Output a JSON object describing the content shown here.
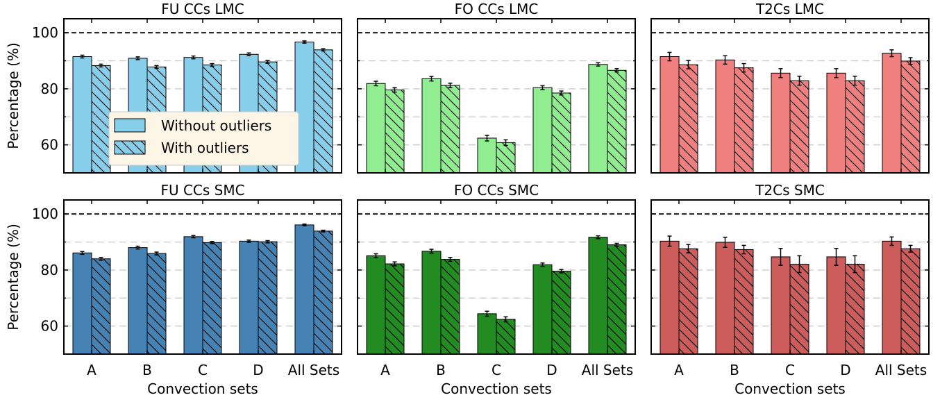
{
  "chart_data": [
    {
      "type": "bar",
      "title": "FU CCs LMC",
      "xlabel": "",
      "ylabel": "Percentage (%)",
      "categories": [
        "A",
        "B",
        "C",
        "D",
        "All Sets"
      ],
      "ylim": [
        50,
        105
      ],
      "yticks": [
        60,
        80,
        100
      ],
      "reference_line": 100,
      "grid": "horizontal dashed at 60, 70, 80, 90",
      "series": [
        {
          "name": "Without outliers",
          "color": "#87ceeb",
          "hatch": false,
          "values": [
            91.5,
            90.9,
            91.2,
            92.3,
            96.7
          ],
          "errors": [
            0.5,
            0.5,
            0.5,
            0.5,
            0.4
          ]
        },
        {
          "name": "With outliers",
          "color": "#87ceeb",
          "hatch": true,
          "values": [
            88.3,
            87.8,
            88.5,
            89.6,
            93.9
          ],
          "errors": [
            0.5,
            0.5,
            0.5,
            0.5,
            0.4
          ]
        }
      ],
      "legend": {
        "placement": "center-left",
        "entries": [
          "Without outliers",
          "With outliers"
        ]
      }
    },
    {
      "type": "bar",
      "title": "FO CCs LMC",
      "xlabel": "",
      "ylabel": "",
      "categories": [
        "A",
        "B",
        "C",
        "D",
        "All Sets"
      ],
      "ylim": [
        50,
        105
      ],
      "yticks": [
        60,
        80,
        100
      ],
      "reference_line": 100,
      "series": [
        {
          "color": "#90ee90",
          "hatch": false,
          "values": [
            81.9,
            83.6,
            62.4,
            80.4,
            88.7
          ],
          "errors": [
            0.8,
            0.8,
            1.0,
            0.7,
            0.6
          ]
        },
        {
          "color": "#90ee90",
          "hatch": true,
          "values": [
            79.6,
            81.2,
            60.8,
            78.5,
            86.6
          ],
          "errors": [
            0.8,
            0.8,
            1.0,
            0.7,
            0.6
          ]
        }
      ]
    },
    {
      "type": "bar",
      "title": "T2Cs LMC",
      "xlabel": "",
      "ylabel": "",
      "categories": [
        "A",
        "B",
        "C",
        "D",
        "All Sets"
      ],
      "ylim": [
        50,
        105
      ],
      "yticks": [
        60,
        80,
        100
      ],
      "reference_line": 100,
      "series": [
        {
          "color": "#f08080",
          "hatch": false,
          "values": [
            91.5,
            90.3,
            85.6,
            85.6,
            92.7
          ],
          "errors": [
            1.5,
            1.5,
            1.6,
            1.6,
            1.2
          ]
        },
        {
          "color": "#f08080",
          "hatch": true,
          "values": [
            88.6,
            87.5,
            82.9,
            82.9,
            89.9
          ],
          "errors": [
            1.5,
            1.5,
            1.6,
            1.6,
            1.2
          ]
        }
      ]
    },
    {
      "type": "bar",
      "title": "FU CCs SMC",
      "xlabel": "Convection sets",
      "ylabel": "Percentage (%)",
      "categories": [
        "A",
        "B",
        "C",
        "D",
        "All Sets"
      ],
      "ylim": [
        50,
        105
      ],
      "yticks": [
        60,
        80,
        100
      ],
      "reference_line": 100,
      "series": [
        {
          "color": "#4682b4",
          "hatch": false,
          "values": [
            86.1,
            88.0,
            91.9,
            90.3,
            96.1
          ],
          "errors": [
            0.5,
            0.5,
            0.4,
            0.4,
            0.3
          ]
        },
        {
          "color": "#4682b4",
          "hatch": true,
          "values": [
            84.0,
            85.9,
            89.8,
            90.1,
            93.9
          ],
          "errors": [
            0.5,
            0.5,
            0.4,
            0.4,
            0.3
          ]
        }
      ]
    },
    {
      "type": "bar",
      "title": "FO CCs SMC",
      "xlabel": "Convection sets",
      "ylabel": "",
      "categories": [
        "A",
        "B",
        "C",
        "D",
        "All Sets"
      ],
      "ylim": [
        50,
        105
      ],
      "yticks": [
        60,
        80,
        100
      ],
      "reference_line": 100,
      "series": [
        {
          "color": "#228b22",
          "hatch": false,
          "values": [
            85.1,
            86.7,
            64.4,
            81.9,
            91.7
          ],
          "errors": [
            0.7,
            0.7,
            0.9,
            0.6,
            0.5
          ]
        },
        {
          "color": "#228b22",
          "hatch": true,
          "values": [
            82.2,
            83.8,
            62.4,
            79.6,
            89.0
          ],
          "errors": [
            0.7,
            0.7,
            0.9,
            0.6,
            0.5
          ]
        }
      ]
    },
    {
      "type": "bar",
      "title": "T2Cs SMC",
      "xlabel": "Convection sets",
      "ylabel": "",
      "categories": [
        "A",
        "B",
        "C",
        "D",
        "All Sets"
      ],
      "ylim": [
        50,
        105
      ],
      "yticks": [
        60,
        80,
        100
      ],
      "reference_line": 100,
      "series": [
        {
          "color": "#cd5c5c",
          "hatch": false,
          "values": [
            90.3,
            89.9,
            84.7,
            84.7,
            90.3
          ],
          "errors": [
            1.8,
            1.8,
            3.0,
            3.0,
            1.5
          ]
        },
        {
          "color": "#cd5c5c",
          "hatch": true,
          "values": [
            87.6,
            87.3,
            82.1,
            82.1,
            87.6
          ],
          "errors": [
            1.5,
            1.5,
            3.0,
            3.0,
            1.2
          ]
        }
      ]
    }
  ]
}
